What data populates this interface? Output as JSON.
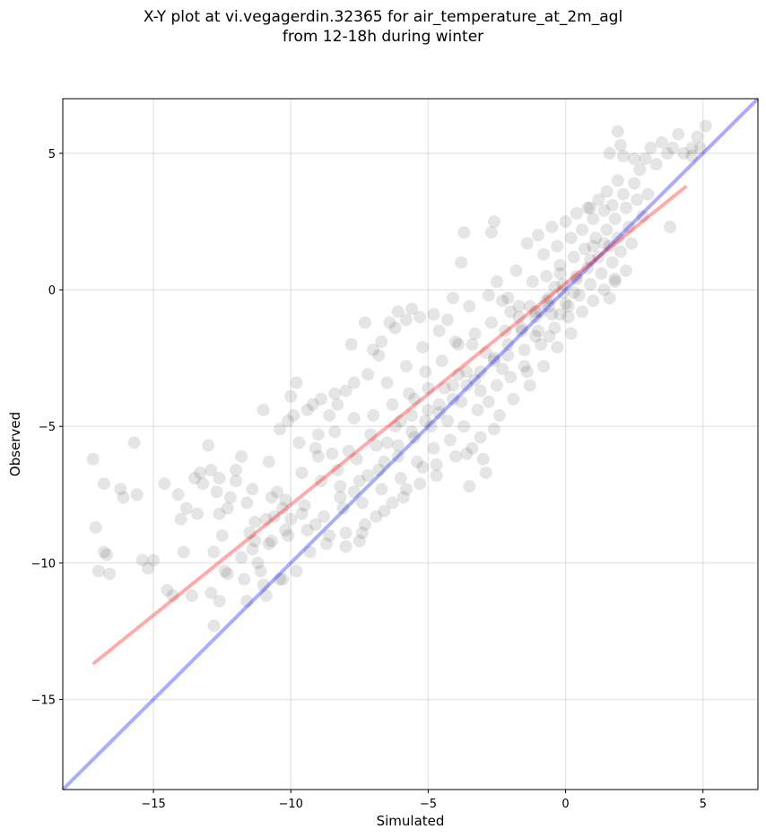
{
  "chart_data": {
    "type": "scatter",
    "title": "X-Y plot at vi.vegagerdin.32365 for air_temperature_at_2m_agl\nfrom 12-18h during winter",
    "xlabel": "Simulated",
    "ylabel": "Observed",
    "xlim": [
      -18.3,
      7.0
    ],
    "ylim": [
      -18.3,
      7.0
    ],
    "xticks": [
      -15,
      -10,
      -5,
      0,
      5
    ],
    "yticks": [
      -15,
      -10,
      -5,
      0,
      5
    ],
    "xtick_labels": [
      "−15",
      "−10",
      "−5",
      "0",
      "5"
    ],
    "ytick_labels": [
      "−15",
      "−10",
      "−5",
      "0",
      "5"
    ],
    "grid": true,
    "point_color": "#000000",
    "point_alpha": 0.1,
    "points": [
      [
        -17.2,
        -6.2
      ],
      [
        -17.0,
        -10.3
      ],
      [
        -17.1,
        -8.7
      ],
      [
        -16.8,
        -9.6
      ],
      [
        -16.7,
        -9.7
      ],
      [
        -16.6,
        -10.4
      ],
      [
        -16.8,
        -7.1
      ],
      [
        -16.2,
        -7.3
      ],
      [
        -16.1,
        -7.6
      ],
      [
        -15.6,
        -7.5
      ],
      [
        -15.7,
        -5.6
      ],
      [
        -15.4,
        -9.9
      ],
      [
        -15.2,
        -10.2
      ],
      [
        -15.0,
        -9.9
      ],
      [
        -14.6,
        -7.1
      ],
      [
        -14.5,
        -11.0
      ],
      [
        -14.3,
        -11.2
      ],
      [
        -14.0,
        -8.4
      ],
      [
        -13.9,
        -9.6
      ],
      [
        -13.8,
        -8.0
      ],
      [
        -13.6,
        -11.2
      ],
      [
        -13.4,
        -8.2
      ],
      [
        -13.3,
        -6.7
      ],
      [
        -13.2,
        -7.1
      ],
      [
        -13.0,
        -5.7
      ],
      [
        -12.9,
        -6.6
      ],
      [
        -12.7,
        -7.4
      ],
      [
        -12.6,
        -8.2
      ],
      [
        -12.8,
        -9.6
      ],
      [
        -12.5,
        -9.0
      ],
      [
        -12.4,
        -10.3
      ],
      [
        -12.9,
        -11.1
      ],
      [
        -12.6,
        -11.4
      ],
      [
        -12.8,
        -12.3
      ],
      [
        -12.2,
        -7.6
      ],
      [
        -12.0,
        -6.6
      ],
      [
        -12.3,
        -8.0
      ],
      [
        -11.8,
        -6.1
      ],
      [
        -11.6,
        -7.8
      ],
      [
        -11.5,
        -8.9
      ],
      [
        -11.4,
        -9.5
      ],
      [
        -11.7,
        -10.6
      ],
      [
        -11.2,
        -10.0
      ],
      [
        -11.1,
        -10.3
      ],
      [
        -11.0,
        -10.8
      ],
      [
        -11.3,
        -8.5
      ],
      [
        -11.0,
        -4.4
      ],
      [
        -10.8,
        -6.3
      ],
      [
        -10.9,
        -8.4
      ],
      [
        -10.7,
        -9.2
      ],
      [
        -10.6,
        -8.3
      ],
      [
        -10.5,
        -7.4
      ],
      [
        -10.3,
        -8.0
      ],
      [
        -10.2,
        -7.7
      ],
      [
        -10.1,
        -9.0
      ],
      [
        -10.0,
        -8.4
      ],
      [
        -10.3,
        -10.6
      ],
      [
        -10.1,
        -4.8
      ],
      [
        -10.0,
        -3.9
      ],
      [
        -9.8,
        -3.4
      ],
      [
        -9.7,
        -5.6
      ],
      [
        -9.6,
        -6.7
      ],
      [
        -9.5,
        -7.9
      ],
      [
        -9.4,
        -8.8
      ],
      [
        -9.3,
        -9.6
      ],
      [
        -9.2,
        -4.2
      ],
      [
        -9.0,
        -5.3
      ],
      [
        -9.0,
        -6.1
      ],
      [
        -8.9,
        -7.0
      ],
      [
        -8.8,
        -8.3
      ],
      [
        -8.7,
        -9.3
      ],
      [
        -8.6,
        -4.6
      ],
      [
        -8.4,
        -5.2
      ],
      [
        -8.3,
        -6.6
      ],
      [
        -8.2,
        -7.2
      ],
      [
        -8.1,
        -8.0
      ],
      [
        -8.0,
        -8.9
      ],
      [
        -8.3,
        -4.2
      ],
      [
        -8.0,
        -3.7
      ],
      [
        -7.8,
        -2.0
      ],
      [
        -7.7,
        -4.7
      ],
      [
        -7.6,
        -6.2
      ],
      [
        -7.5,
        -7.0
      ],
      [
        -7.4,
        -7.8
      ],
      [
        -7.3,
        -8.6
      ],
      [
        -7.5,
        -9.2
      ],
      [
        -7.2,
        -3.1
      ],
      [
        -7.0,
        -4.6
      ],
      [
        -6.9,
        -5.7
      ],
      [
        -6.8,
        -6.6
      ],
      [
        -6.7,
        -7.3
      ],
      [
        -6.6,
        -8.1
      ],
      [
        -6.8,
        -2.4
      ],
      [
        -6.5,
        -3.4
      ],
      [
        -6.4,
        -1.2
      ],
      [
        -6.3,
        -4.2
      ],
      [
        -6.2,
        -5.0
      ],
      [
        -6.1,
        -6.1
      ],
      [
        -6.0,
        -6.9
      ],
      [
        -5.9,
        -7.6
      ],
      [
        -6.1,
        -0.8
      ],
      [
        -5.8,
        -2.8
      ],
      [
        -5.7,
        -3.8
      ],
      [
        -5.6,
        -4.6
      ],
      [
        -5.5,
        -5.4
      ],
      [
        -5.4,
        -6.3
      ],
      [
        -5.3,
        -7.1
      ],
      [
        -5.6,
        -0.7
      ],
      [
        -5.2,
        -2.1
      ],
      [
        -5.1,
        -3.0
      ],
      [
        -5.0,
        -4.4
      ],
      [
        -4.9,
        -5.0
      ],
      [
        -4.8,
        -5.8
      ],
      [
        -4.7,
        -6.4
      ],
      [
        -4.6,
        -1.5
      ],
      [
        -4.5,
        -2.6
      ],
      [
        -4.4,
        -3.6
      ],
      [
        -4.3,
        -4.8
      ],
      [
        -4.2,
        -5.5
      ],
      [
        -4.1,
        -0.3
      ],
      [
        -4.0,
        -1.9
      ],
      [
        -3.9,
        -3.1
      ],
      [
        -3.8,
        -4.1
      ],
      [
        -3.7,
        -5.0
      ],
      [
        -3.6,
        -6.0
      ],
      [
        -3.8,
        1.0
      ],
      [
        -3.5,
        -0.6
      ],
      [
        -3.4,
        -2.0
      ],
      [
        -3.3,
        -3.3
      ],
      [
        -3.2,
        -4.4
      ],
      [
        -3.1,
        -5.4
      ],
      [
        -3.0,
        -6.2
      ],
      [
        -3.5,
        -7.2
      ],
      [
        -2.9,
        -6.7
      ],
      [
        -3.7,
        2.1
      ],
      [
        -2.8,
        -0.2
      ],
      [
        -2.7,
        -1.2
      ],
      [
        -2.6,
        -2.6
      ],
      [
        -2.5,
        -3.5
      ],
      [
        -2.4,
        -4.6
      ],
      [
        -2.7,
        2.1
      ],
      [
        -2.6,
        2.5
      ],
      [
        -2.3,
        -0.4
      ],
      [
        -2.2,
        -1.5
      ],
      [
        -2.1,
        -2.4
      ],
      [
        -2.0,
        -3.2
      ],
      [
        -1.9,
        -4.0
      ],
      [
        -1.8,
        0.7
      ],
      [
        -1.7,
        -0.6
      ],
      [
        -1.6,
        -1.4
      ],
      [
        -1.5,
        -2.2
      ],
      [
        -1.4,
        -3.0
      ],
      [
        -1.3,
        -3.5
      ],
      [
        -1.4,
        1.7
      ],
      [
        -1.2,
        0.3
      ],
      [
        -1.1,
        -0.8
      ],
      [
        -1.0,
        -1.5
      ],
      [
        -0.9,
        -2.0
      ],
      [
        -0.8,
        -2.8
      ],
      [
        -1.0,
        2.0
      ],
      [
        -0.8,
        1.3
      ],
      [
        -0.7,
        0.5
      ],
      [
        -0.6,
        -0.3
      ],
      [
        -0.5,
        -0.9
      ],
      [
        -0.4,
        -1.4
      ],
      [
        -0.3,
        -2.1
      ],
      [
        -0.5,
        2.3
      ],
      [
        -0.3,
        1.6
      ],
      [
        -0.2,
        0.9
      ],
      [
        -0.1,
        0.2
      ],
      [
        0.0,
        -0.5
      ],
      [
        0.1,
        -1.0
      ],
      [
        0.2,
        -1.6
      ],
      [
        0.0,
        2.5
      ],
      [
        0.2,
        1.9
      ],
      [
        0.3,
        1.2
      ],
      [
        0.4,
        0.4
      ],
      [
        0.5,
        -0.2
      ],
      [
        0.6,
        -0.8
      ],
      [
        0.4,
        2.8
      ],
      [
        0.6,
        2.2
      ],
      [
        0.7,
        1.5
      ],
      [
        0.8,
        0.8
      ],
      [
        0.9,
        0.2
      ],
      [
        1.0,
        -0.4
      ],
      [
        0.8,
        3.0
      ],
      [
        1.0,
        2.6
      ],
      [
        1.1,
        1.9
      ],
      [
        1.2,
        1.2
      ],
      [
        1.3,
        0.6
      ],
      [
        1.4,
        0.0
      ],
      [
        1.2,
        3.3
      ],
      [
        1.4,
        2.9
      ],
      [
        1.5,
        2.2
      ],
      [
        1.6,
        1.6
      ],
      [
        1.7,
        1.0
      ],
      [
        1.8,
        0.4
      ],
      [
        1.5,
        3.6
      ],
      [
        1.7,
        3.1
      ],
      [
        1.8,
        2.6
      ],
      [
        1.9,
        1.9
      ],
      [
        2.0,
        1.4
      ],
      [
        2.2,
        0.7
      ],
      [
        1.9,
        4.0
      ],
      [
        2.1,
        3.5
      ],
      [
        2.2,
        3.0
      ],
      [
        2.3,
        2.3
      ],
      [
        2.4,
        1.7
      ],
      [
        2.5,
        3.9
      ],
      [
        2.6,
        3.3
      ],
      [
        2.7,
        4.4
      ],
      [
        2.8,
        2.7
      ],
      [
        2.1,
        4.9
      ],
      [
        2.5,
        4.8
      ],
      [
        2.9,
        4.8
      ],
      [
        3.1,
        5.2
      ],
      [
        3.3,
        4.6
      ],
      [
        3.5,
        5.4
      ],
      [
        3.7,
        5.0
      ],
      [
        3.9,
        5.2
      ],
      [
        4.1,
        5.7
      ],
      [
        4.3,
        5.0
      ],
      [
        4.6,
        5.2
      ],
      [
        4.8,
        5.6
      ],
      [
        4.9,
        5.2
      ],
      [
        5.1,
        6.0
      ],
      [
        4.6,
        4.9
      ],
      [
        3.8,
        2.3
      ],
      [
        3.0,
        3.5
      ],
      [
        1.9,
        5.8
      ],
      [
        2.0,
        5.3
      ],
      [
        1.6,
        5.0
      ],
      [
        1.8,
        0.3
      ],
      [
        1.6,
        -0.3
      ],
      [
        1.0,
        1.6
      ],
      [
        0.9,
        3.0
      ],
      [
        -0.6,
        -1.7
      ],
      [
        -1.1,
        -1.7
      ],
      [
        -0.2,
        0.6
      ],
      [
        0.1,
        -0.6
      ],
      [
        -0.4,
        0.1
      ],
      [
        -0.7,
        -0.4
      ],
      [
        0.3,
        -0.1
      ],
      [
        -0.2,
        -0.9
      ],
      [
        -0.9,
        -0.8
      ],
      [
        -1.3,
        -0.6
      ],
      [
        -1.7,
        -1.0
      ],
      [
        -2.1,
        -0.3
      ],
      [
        -2.5,
        0.3
      ],
      [
        -2.0,
        -0.8
      ],
      [
        -1.5,
        -2.8
      ],
      [
        -2.3,
        -2.9
      ],
      [
        -2.9,
        -2.3
      ],
      [
        -3.3,
        -1.6
      ],
      [
        -3.9,
        -2.0
      ],
      [
        -4.3,
        -1.1
      ],
      [
        -4.8,
        -0.9
      ],
      [
        -5.3,
        -1.0
      ],
      [
        -5.8,
        -1.1
      ],
      [
        -6.2,
        -1.4
      ],
      [
        -6.7,
        -1.9
      ],
      [
        -7.3,
        -1.2
      ],
      [
        -7.0,
        -2.2
      ],
      [
        -7.7,
        -3.4
      ],
      [
        -8.4,
        -3.8
      ],
      [
        -8.9,
        -4.0
      ],
      [
        -9.4,
        -4.4
      ],
      [
        -9.9,
        -4.6
      ],
      [
        -10.4,
        -5.1
      ],
      [
        -9.1,
        -5.8
      ],
      [
        -8.5,
        -6.0
      ],
      [
        -7.9,
        -5.9
      ],
      [
        -7.1,
        -5.3
      ],
      [
        -6.5,
        -5.6
      ],
      [
        -6.0,
        -4.8
      ],
      [
        -5.5,
        -4.0
      ],
      [
        -5.0,
        -3.6
      ],
      [
        -4.6,
        -4.2
      ],
      [
        -4.1,
        -3.5
      ],
      [
        -3.6,
        -3.0
      ],
      [
        -3.1,
        -3.7
      ],
      [
        -2.8,
        -4.1
      ],
      [
        -2.6,
        -5.1
      ],
      [
        -3.4,
        -5.8
      ],
      [
        -4.0,
        -6.1
      ],
      [
        -4.7,
        -6.8
      ],
      [
        -5.2,
        -6.5
      ],
      [
        -5.8,
        -7.3
      ],
      [
        -6.3,
        -7.8
      ],
      [
        -6.9,
        -8.3
      ],
      [
        -7.4,
        -8.9
      ],
      [
        -8.0,
        -9.4
      ],
      [
        -8.6,
        -9.0
      ],
      [
        -9.1,
        -8.6
      ],
      [
        -9.6,
        -8.2
      ],
      [
        -10.2,
        -8.8
      ],
      [
        -10.8,
        -9.3
      ],
      [
        -11.3,
        -9.2
      ],
      [
        -11.8,
        -9.8
      ],
      [
        -12.3,
        -10.4
      ],
      [
        -11.6,
        -11.4
      ],
      [
        -10.9,
        -11.2
      ],
      [
        -10.4,
        -10.6
      ],
      [
        -9.8,
        -10.3
      ],
      [
        -10.7,
        -7.6
      ],
      [
        -11.4,
        -7.3
      ],
      [
        -12.0,
        -7.0
      ],
      [
        -12.6,
        -6.9
      ],
      [
        -13.5,
        -6.9
      ],
      [
        -14.1,
        -7.5
      ],
      [
        -8.2,
        -7.6
      ],
      [
        -7.7,
        -7.4
      ],
      [
        -7.2,
        -6.8
      ],
      [
        -6.6,
        -6.3
      ],
      [
        -6.1,
        -5.7
      ],
      [
        -5.6,
        -5.2
      ],
      [
        -5.1,
        -4.8
      ],
      [
        -4.6,
        -4.5
      ],
      [
        -4.1,
        -4.0
      ],
      [
        -3.6,
        -3.5
      ],
      [
        -3.1,
        -3.0
      ],
      [
        -2.6,
        -2.5
      ],
      [
        -2.1,
        -2.0
      ],
      [
        -1.6,
        -1.5
      ],
      [
        -1.1,
        -1.0
      ],
      [
        -0.6,
        -0.6
      ],
      [
        -0.1,
        -0.1
      ],
      [
        0.4,
        0.5
      ],
      [
        0.9,
        1.1
      ],
      [
        1.4,
        1.7
      ]
    ],
    "lines": [
      {
        "color": "#0000ff",
        "alpha": 0.33,
        "points": [
          [
            -18.3,
            -18.3
          ],
          [
            7.0,
            7.0
          ]
        ]
      },
      {
        "color": "#ff0000",
        "alpha": 0.33,
        "points": [
          [
            -17.2,
            -13.7
          ],
          [
            4.4,
            3.8
          ]
        ]
      }
    ]
  }
}
